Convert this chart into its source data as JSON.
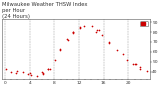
{
  "title": "Milwaukee Weather THSW Index\nper Hour\n(24 Hours)",
  "x_hours": [
    0,
    1,
    2,
    3,
    4,
    5,
    6,
    7,
    8,
    9,
    10,
    11,
    12,
    13,
    14,
    15,
    16,
    17,
    18,
    19,
    20,
    21,
    22,
    23
  ],
  "y_values": [
    43,
    41,
    40,
    39,
    38,
    37,
    39,
    43,
    53,
    62,
    72,
    80,
    84,
    87,
    85,
    81,
    76,
    70,
    63,
    57,
    51,
    47,
    44,
    42
  ],
  "dot_color": "#cc0000",
  "dot_size": 1.5,
  "background_color": "#ffffff",
  "grid_color": "#999999",
  "ylim": [
    33,
    93
  ],
  "xlim": [
    -0.5,
    23.5
  ],
  "ytick_values": [
    40,
    50,
    60,
    70,
    80,
    90
  ],
  "ytick_labels": [
    "40",
    "50",
    "60",
    "70",
    "80",
    "90"
  ],
  "legend_color": "#cc0000",
  "title_fontsize": 3.8,
  "tick_fontsize": 3.2,
  "border_color": "#555555"
}
